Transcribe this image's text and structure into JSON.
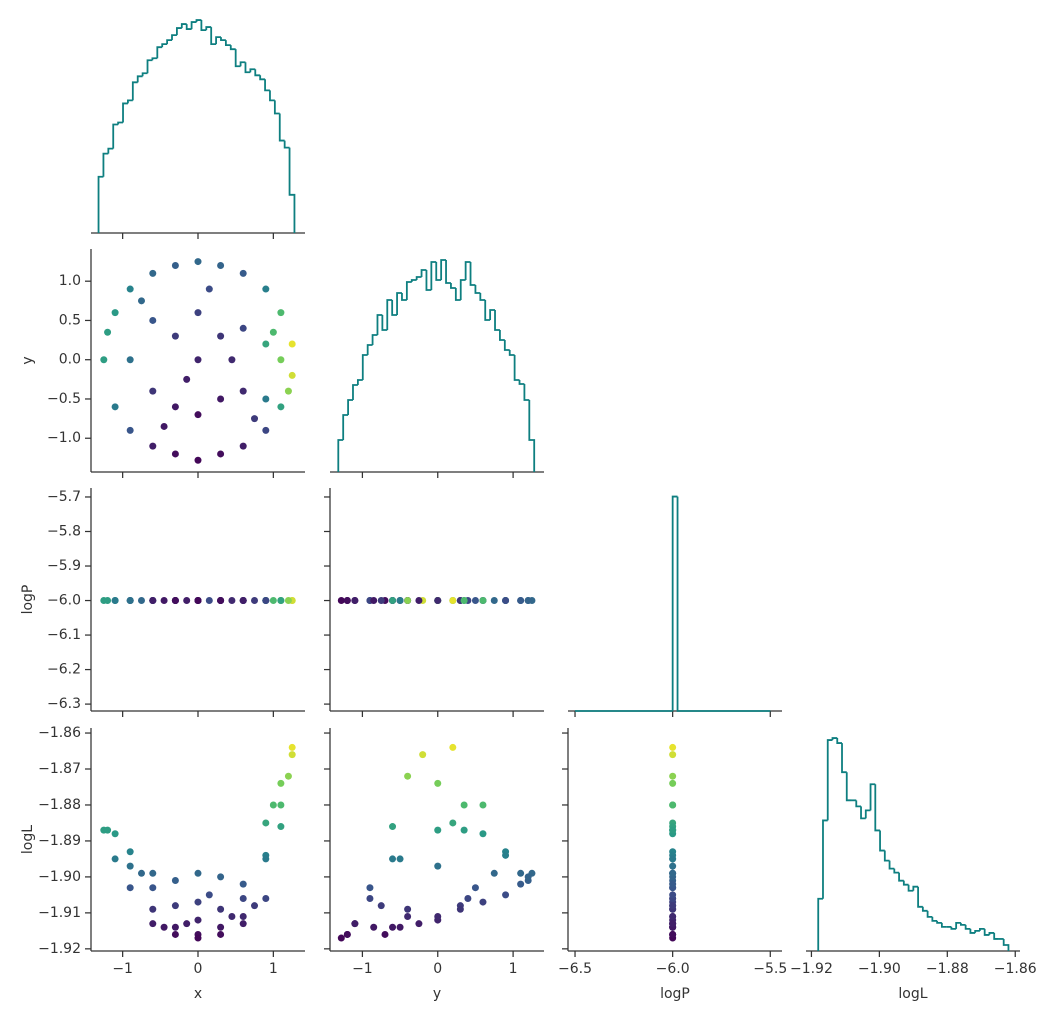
{
  "chart_data": {
    "type": "corner",
    "hist_color": "#0e7f80",
    "colormap": [
      "#440154",
      "#3b528b",
      "#21918c",
      "#5ec962",
      "#fde725"
    ],
    "color_by": "logL",
    "color_range": [
      -1.918,
      -1.862
    ],
    "variables": [
      {
        "label": "x",
        "xlim": [
          -1.42,
          1.42
        ],
        "xticks": [
          {
            "value": -1,
            "label": "−1"
          },
          0,
          1
        ],
        "samples": [
          -1.25,
          -1.1,
          -1.1,
          -0.9,
          -0.9,
          -0.9,
          -0.6,
          -0.6,
          -0.6,
          -0.6,
          -0.3,
          -0.3,
          -0.3,
          -0.3,
          0.0,
          0.0,
          0.0,
          0.0,
          0.0,
          0.3,
          0.3,
          0.3,
          0.3,
          0.6,
          0.6,
          0.6,
          0.6,
          0.9,
          0.9,
          0.9,
          0.9,
          1.1,
          1.1,
          1.1,
          1.25,
          1.25,
          -1.2,
          -0.45,
          0.15,
          0.45,
          -0.15,
          0.75,
          -0.75,
          1.0,
          1.2
        ],
        "hist": {
          "bins": [
            -1.32,
            -1.255,
            -1.19,
            -1.125,
            -1.06,
            -0.995,
            -0.93,
            -0.865,
            -0.8,
            -0.735,
            -0.67,
            -0.605,
            -0.54,
            -0.475,
            -0.41,
            -0.345,
            -0.28,
            -0.215,
            -0.15,
            -0.085,
            -0.02,
            0.045,
            0.11,
            0.175,
            0.24,
            0.305,
            0.37,
            0.435,
            0.5,
            0.565,
            0.63,
            0.695,
            0.76,
            0.825,
            0.89,
            0.955,
            1.02,
            1.085,
            1.15,
            1.215,
            1.28
          ],
          "counts": [
            56,
            79,
            84,
            108,
            110,
            129,
            132,
            150,
            156,
            159,
            172,
            174,
            185,
            188,
            192,
            197,
            204,
            208,
            203,
            210,
            212,
            202,
            205,
            188,
            195,
            192,
            187,
            183,
            166,
            170,
            160,
            163,
            157,
            153,
            142,
            132,
            119,
            92,
            85,
            38
          ],
          "ylim": [
            0,
            222
          ]
        }
      },
      {
        "label": "y",
        "xlim": [
          -1.43,
          1.41
        ],
        "xticks": [
          {
            "value": -1,
            "label": "−1"
          },
          0,
          1
        ],
        "ylim": [
          -1.43,
          1.41
        ],
        "yticks": [
          {
            "value": 1,
            "label": "1.0"
          },
          {
            "value": 0.5,
            "label": "0.5"
          },
          {
            "value": 0,
            "label": "0.0"
          },
          {
            "value": -0.5,
            "label": "−0.5"
          },
          {
            "value": -1,
            "label": "−1.0"
          }
        ],
        "samples": [
          0.0,
          0.6,
          -0.6,
          0.9,
          -0.9,
          0.0,
          1.1,
          0.5,
          -0.4,
          -1.1,
          1.2,
          0.3,
          -0.6,
          -1.2,
          1.25,
          0.6,
          0.0,
          -0.7,
          -1.28,
          1.2,
          0.3,
          -0.5,
          -1.2,
          1.1,
          0.4,
          -0.4,
          -1.1,
          0.9,
          0.2,
          -0.5,
          -0.9,
          0.6,
          0.0,
          -0.6,
          0.2,
          -0.2,
          0.35,
          -0.85,
          0.9,
          0.0,
          -0.25,
          -0.75,
          0.75,
          0.35,
          -0.4
        ],
        "hist": {
          "bins": [
            -1.32,
            -1.255,
            -1.19,
            -1.125,
            -1.06,
            -0.995,
            -0.93,
            -0.865,
            -0.8,
            -0.735,
            -0.67,
            -0.605,
            -0.54,
            -0.475,
            -0.41,
            -0.345,
            -0.28,
            -0.215,
            -0.15,
            -0.085,
            -0.02,
            0.045,
            0.11,
            0.175,
            0.24,
            0.305,
            0.37,
            0.435,
            0.5,
            0.565,
            0.63,
            0.695,
            0.76,
            0.825,
            0.89,
            0.955,
            1.02,
            1.085,
            1.15,
            1.215,
            1.28
          ],
          "counts": [
            32,
            57,
            72,
            87,
            92,
            117,
            127,
            137,
            157,
            142,
            172,
            157,
            179,
            172,
            190,
            192,
            195,
            202,
            182,
            210,
            192,
            212,
            189,
            184,
            172,
            192,
            210,
            187,
            179,
            172,
            152,
            162,
            142,
            132,
            122,
            117,
            92,
            88,
            72,
            32
          ],
          "ylim": [
            0,
            223
          ]
        }
      },
      {
        "label": "logP",
        "xlim": [
          -6.536,
          -5.44
        ],
        "xticks": [
          {
            "value": -6.5,
            "label": "−6.5"
          },
          {
            "value": -6.0,
            "label": "−6.0"
          },
          {
            "value": -5.5,
            "label": "−5.5"
          }
        ],
        "ylim": [
          -6.32,
          -5.674
        ],
        "yticks": [
          {
            "value": -5.7,
            "label": "−5.7"
          },
          {
            "value": -5.8,
            "label": "−5.8"
          },
          {
            "value": -5.9,
            "label": "−5.9"
          },
          {
            "value": -6.0,
            "label": "−6.0"
          },
          {
            "value": -6.1,
            "label": "−6.1"
          },
          {
            "value": -6.2,
            "label": "−6.2"
          },
          {
            "value": -6.3,
            "label": "−6.3"
          }
        ],
        "samples": [
          -6.0,
          -6.0,
          -6.0,
          -6.0,
          -6.0,
          -6.0,
          -6.0,
          -6.0,
          -6.0,
          -6.0,
          -6.0,
          -6.0,
          -6.0,
          -6.0,
          -6.0,
          -6.0,
          -6.0,
          -6.0,
          -6.0,
          -6.0,
          -6.0,
          -6.0,
          -6.0,
          -6.0,
          -6.0,
          -6.0,
          -6.0,
          -6.0,
          -6.0,
          -6.0,
          -6.0,
          -6.0,
          -6.0,
          -6.0,
          -6.0,
          -6.0,
          -6.0,
          -6.0,
          -6.0,
          -6.0,
          -6.0,
          -6.0,
          -6.0,
          -6.0,
          -6.0
        ],
        "hist": {
          "bins": [
            -6.5,
            -6.0,
            -5.975,
            -5.5
          ],
          "counts": [
            0,
            100,
            0
          ],
          "ylim": [
            0,
            104
          ]
        }
      },
      {
        "label": "logL",
        "xlim": [
          -1.9216,
          -1.8586
        ],
        "xticks": [
          {
            "value": -1.92,
            "label": "−1.92"
          },
          {
            "value": -1.9,
            "label": "−1.90"
          },
          {
            "value": -1.88,
            "label": "−1.88"
          },
          {
            "value": -1.86,
            "label": "−1.86"
          }
        ],
        "ylim": [
          -1.9206,
          -1.8586
        ],
        "yticks": [
          {
            "value": -1.86,
            "label": "−1.86"
          },
          {
            "value": -1.87,
            "label": "−1.87"
          },
          {
            "value": -1.88,
            "label": "−1.88"
          },
          {
            "value": -1.89,
            "label": "−1.89"
          },
          {
            "value": -1.9,
            "label": "−1.90"
          },
          {
            "value": -1.91,
            "label": "−1.91"
          },
          {
            "value": -1.92,
            "label": "−1.92"
          }
        ],
        "samples": [
          -1.887,
          -1.888,
          -1.895,
          -1.893,
          -1.903,
          -1.897,
          -1.899,
          -1.903,
          -1.909,
          -1.913,
          -1.901,
          -1.908,
          -1.914,
          -1.916,
          -1.899,
          -1.907,
          -1.912,
          -1.916,
          -1.917,
          -1.9,
          -1.909,
          -1.914,
          -1.916,
          -1.902,
          -1.906,
          -1.911,
          -1.913,
          -1.894,
          -1.885,
          -1.895,
          -1.906,
          -1.88,
          -1.874,
          -1.886,
          -1.864,
          -1.866,
          -1.887,
          -1.914,
          -1.905,
          -1.911,
          -1.913,
          -1.908,
          -1.899,
          -1.88,
          -1.872
        ],
        "hist": {
          "bins": [
            -1.918,
            -1.9166,
            -1.9152,
            -1.9138,
            -1.9124,
            -1.911,
            -1.9096,
            -1.9082,
            -1.9068,
            -1.9054,
            -1.904,
            -1.9026,
            -1.9012,
            -1.8998,
            -1.8984,
            -1.897,
            -1.8956,
            -1.8942,
            -1.8928,
            -1.8914,
            -1.89,
            -1.8886,
            -1.8872,
            -1.8858,
            -1.8844,
            -1.883,
            -1.8816,
            -1.8802,
            -1.8788,
            -1.8774,
            -1.876,
            -1.8746,
            -1.8732,
            -1.8718,
            -1.8704,
            -1.869,
            -1.8676,
            -1.8662,
            -1.8648,
            -1.8634,
            -1.862
          ],
          "counts": [
            52,
            130,
            210,
            212,
            207,
            178,
            150,
            150,
            144,
            132,
            140,
            166,
            120,
            100,
            90,
            82,
            78,
            70,
            66,
            60,
            64,
            44,
            40,
            34,
            30,
            28,
            24,
            24,
            22,
            28,
            26,
            22,
            18,
            20,
            22,
            16,
            18,
            12,
            12,
            6
          ],
          "ylim": [
            0,
            222
          ]
        }
      }
    ]
  }
}
